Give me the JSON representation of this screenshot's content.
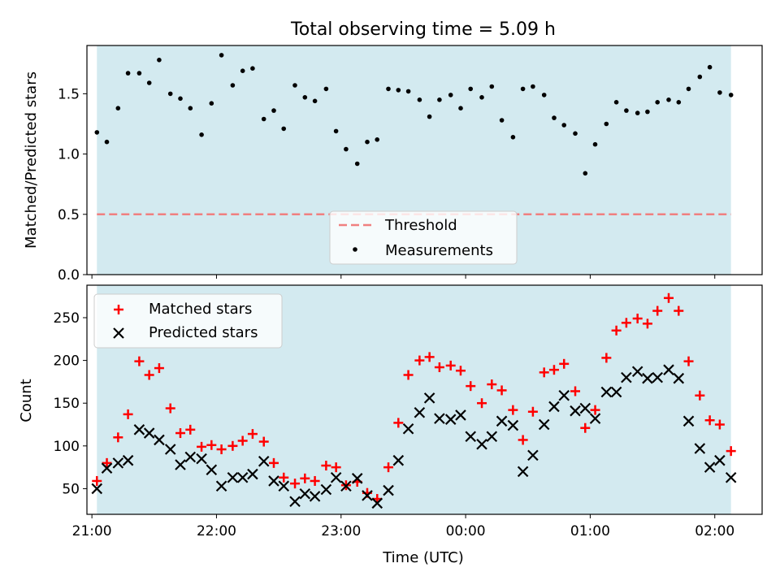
{
  "figure": {
    "title": "Total observing time = 5.09 h",
    "shade_color": "#d3eaf0",
    "xlabel": "Time (UTC)"
  },
  "chart_data": [
    {
      "type": "scatter",
      "panel": "top",
      "ylabel": "Matched/Predicted stars",
      "ylim": [
        0,
        1.9
      ],
      "yticks": [
        0.0,
        0.5,
        1.0,
        1.5
      ],
      "ytick_labels": [
        "0.0",
        "0.5",
        "1.0",
        "1.5"
      ],
      "xlim": [
        20.96,
        26.38
      ],
      "xticks": [
        21,
        22,
        23,
        24,
        25,
        26
      ],
      "shaded_range": [
        21.04,
        26.13
      ],
      "threshold": {
        "name": "Threshold",
        "value": 0.5,
        "color": "#f08080",
        "style": "dashed"
      },
      "legend": {
        "position": "lower center",
        "entries": [
          "Threshold",
          "Measurements"
        ]
      },
      "series": [
        {
          "name": "Measurements",
          "color": "#000000",
          "marker": "dot",
          "x": [
            21.04,
            21.12,
            21.21,
            21.29,
            21.38,
            21.46,
            21.54,
            21.63,
            21.71,
            21.79,
            21.88,
            21.96,
            22.04,
            22.13,
            22.21,
            22.29,
            22.38,
            22.46,
            22.54,
            22.63,
            22.71,
            22.79,
            22.88,
            22.96,
            23.04,
            23.13,
            23.21,
            23.29,
            23.38,
            23.46,
            23.54,
            23.63,
            23.71,
            23.79,
            23.88,
            23.96,
            24.04,
            24.13,
            24.21,
            24.29,
            24.38,
            24.46,
            24.54,
            24.63,
            24.71,
            24.79,
            24.88,
            24.96,
            25.04,
            25.13,
            25.21,
            25.29,
            25.38,
            25.46,
            25.54,
            25.63,
            25.71,
            25.79,
            25.88,
            25.96,
            26.04,
            26.13
          ],
          "y": [
            1.18,
            1.1,
            1.38,
            1.67,
            1.67,
            1.59,
            1.78,
            1.5,
            1.46,
            1.38,
            1.16,
            1.42,
            1.82,
            1.57,
            1.69,
            1.71,
            1.29,
            1.36,
            1.21,
            1.57,
            1.47,
            1.44,
            1.54,
            1.19,
            1.04,
            0.92,
            1.1,
            1.12,
            1.54,
            1.53,
            1.52,
            1.45,
            1.31,
            1.45,
            1.49,
            1.38,
            1.54,
            1.47,
            1.56,
            1.28,
            1.14,
            1.54,
            1.56,
            1.49,
            1.3,
            1.24,
            1.17,
            0.84,
            1.08,
            1.25,
            1.43,
            1.36,
            1.34,
            1.35,
            1.43,
            1.45,
            1.43,
            1.54,
            1.64,
            1.72,
            1.51,
            1.49
          ]
        }
      ]
    },
    {
      "type": "scatter",
      "panel": "bottom",
      "ylabel": "Count",
      "xlabel": "Time (UTC)",
      "ylim": [
        20,
        288
      ],
      "yticks": [
        50,
        100,
        150,
        200,
        250
      ],
      "xlim": [
        20.96,
        26.38
      ],
      "xticks": [
        21,
        22,
        23,
        24,
        25,
        26
      ],
      "xtick_labels": [
        "21:00",
        "22:00",
        "23:00",
        "00:00",
        "01:00",
        "02:00"
      ],
      "shaded_range": [
        21.04,
        26.13
      ],
      "legend": {
        "position": "upper left",
        "entries": [
          "Matched stars",
          "Predicted stars"
        ]
      },
      "x": [
        21.04,
        21.12,
        21.21,
        21.29,
        21.38,
        21.46,
        21.54,
        21.63,
        21.71,
        21.79,
        21.88,
        21.96,
        22.04,
        22.13,
        22.21,
        22.29,
        22.38,
        22.46,
        22.54,
        22.63,
        22.71,
        22.79,
        22.88,
        22.96,
        23.04,
        23.13,
        23.21,
        23.29,
        23.38,
        23.46,
        23.54,
        23.63,
        23.71,
        23.79,
        23.88,
        23.96,
        24.04,
        24.13,
        24.21,
        24.29,
        24.38,
        24.46,
        24.54,
        24.63,
        24.71,
        24.79,
        24.88,
        24.96,
        25.04,
        25.13,
        25.21,
        25.29,
        25.38,
        25.46,
        25.54,
        25.63,
        25.71,
        25.79,
        25.88,
        25.96,
        26.04,
        26.13
      ],
      "series": [
        {
          "name": "Matched stars",
          "color": "#ff0000",
          "marker": "plus",
          "values": [
            59,
            80,
            110,
            137,
            199,
            183,
            191,
            144,
            115,
            119,
            99,
            101,
            96,
            100,
            106,
            114,
            105,
            80,
            63,
            56,
            62,
            59,
            77,
            75,
            54,
            58,
            45,
            38,
            75,
            127,
            183,
            200,
            204,
            192,
            194,
            188,
            170,
            150,
            172,
            165,
            142,
            107,
            140,
            186,
            189,
            196,
            164,
            121,
            142,
            203,
            235,
            244,
            249,
            243,
            258,
            273,
            258,
            199,
            159,
            130,
            125,
            94
          ]
        },
        {
          "name": "Predicted stars",
          "color": "#000000",
          "marker": "x",
          "values": [
            50,
            74,
            80,
            83,
            119,
            115,
            107,
            96,
            78,
            87,
            85,
            72,
            53,
            63,
            63,
            67,
            82,
            59,
            53,
            35,
            44,
            41,
            49,
            63,
            53,
            62,
            42,
            33,
            48,
            83,
            120,
            139,
            156,
            132,
            131,
            136,
            111,
            102,
            111,
            129,
            124,
            70,
            89,
            125,
            146,
            159,
            141,
            144,
            132,
            163,
            163,
            180,
            187,
            179,
            180,
            189,
            179,
            129,
            97,
            75,
            83,
            63
          ]
        }
      ]
    }
  ]
}
